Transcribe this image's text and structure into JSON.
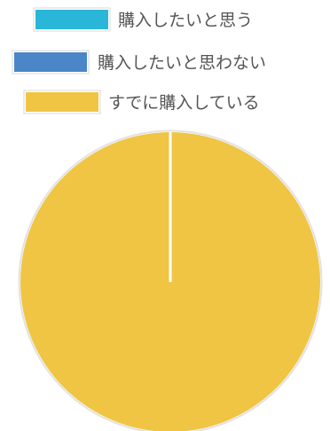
{
  "chart_data": {
    "type": "pie",
    "title": "",
    "legend_position": "top",
    "series": [
      {
        "name": "購入したいと思う",
        "value": 0,
        "color": "#29b6d8"
      },
      {
        "name": "購入したいと思わない",
        "value": 0,
        "color": "#4a86c8"
      },
      {
        "name": "すでに購入している",
        "value": 100,
        "color": "#f0c544"
      }
    ]
  }
}
